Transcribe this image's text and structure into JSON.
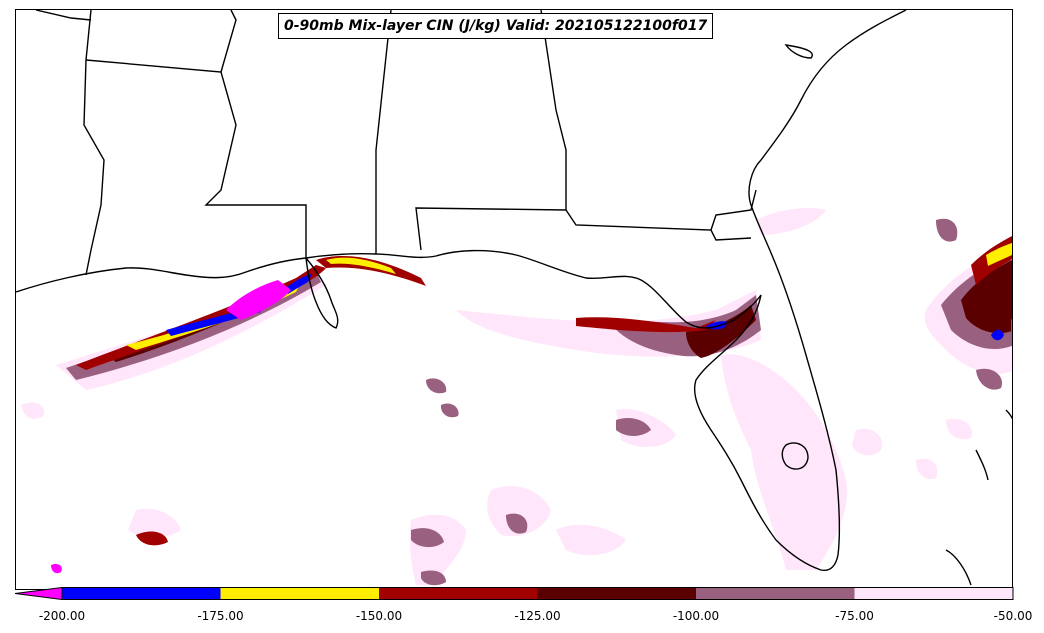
{
  "title": "0-90mb Mix-layer CIN (J/kg) Valid: 202105122100f017",
  "colorbar": {
    "extend": "min",
    "extension_color": "#ff00ff",
    "bins": [
      {
        "from": -200,
        "to": -175,
        "color": "#0000ff"
      },
      {
        "from": -175,
        "to": -150,
        "color": "#ffee00"
      },
      {
        "from": -150,
        "to": -125,
        "color": "#a00000"
      },
      {
        "from": -125,
        "to": -100,
        "color": "#5a0000"
      },
      {
        "from": -100,
        "to": -75,
        "color": "#9a6080"
      },
      {
        "from": -75,
        "to": -50,
        "color": "#ffe6fa"
      }
    ],
    "tick_labels": [
      "-200.00",
      "-175.00",
      "-150.00",
      "-125.00",
      "-100.00",
      "-75.00",
      "-50.00"
    ]
  },
  "colors": {
    "coast": "#000000",
    "cin_lt_200": "#ff00ff",
    "cin_200_175": "#0000ff",
    "cin_175_150": "#ffee00",
    "cin_150_125": "#a00000",
    "cin_125_100": "#5a0000",
    "cin_100_75": "#9a6080",
    "cin_75_50": "#ffe6fa"
  }
}
